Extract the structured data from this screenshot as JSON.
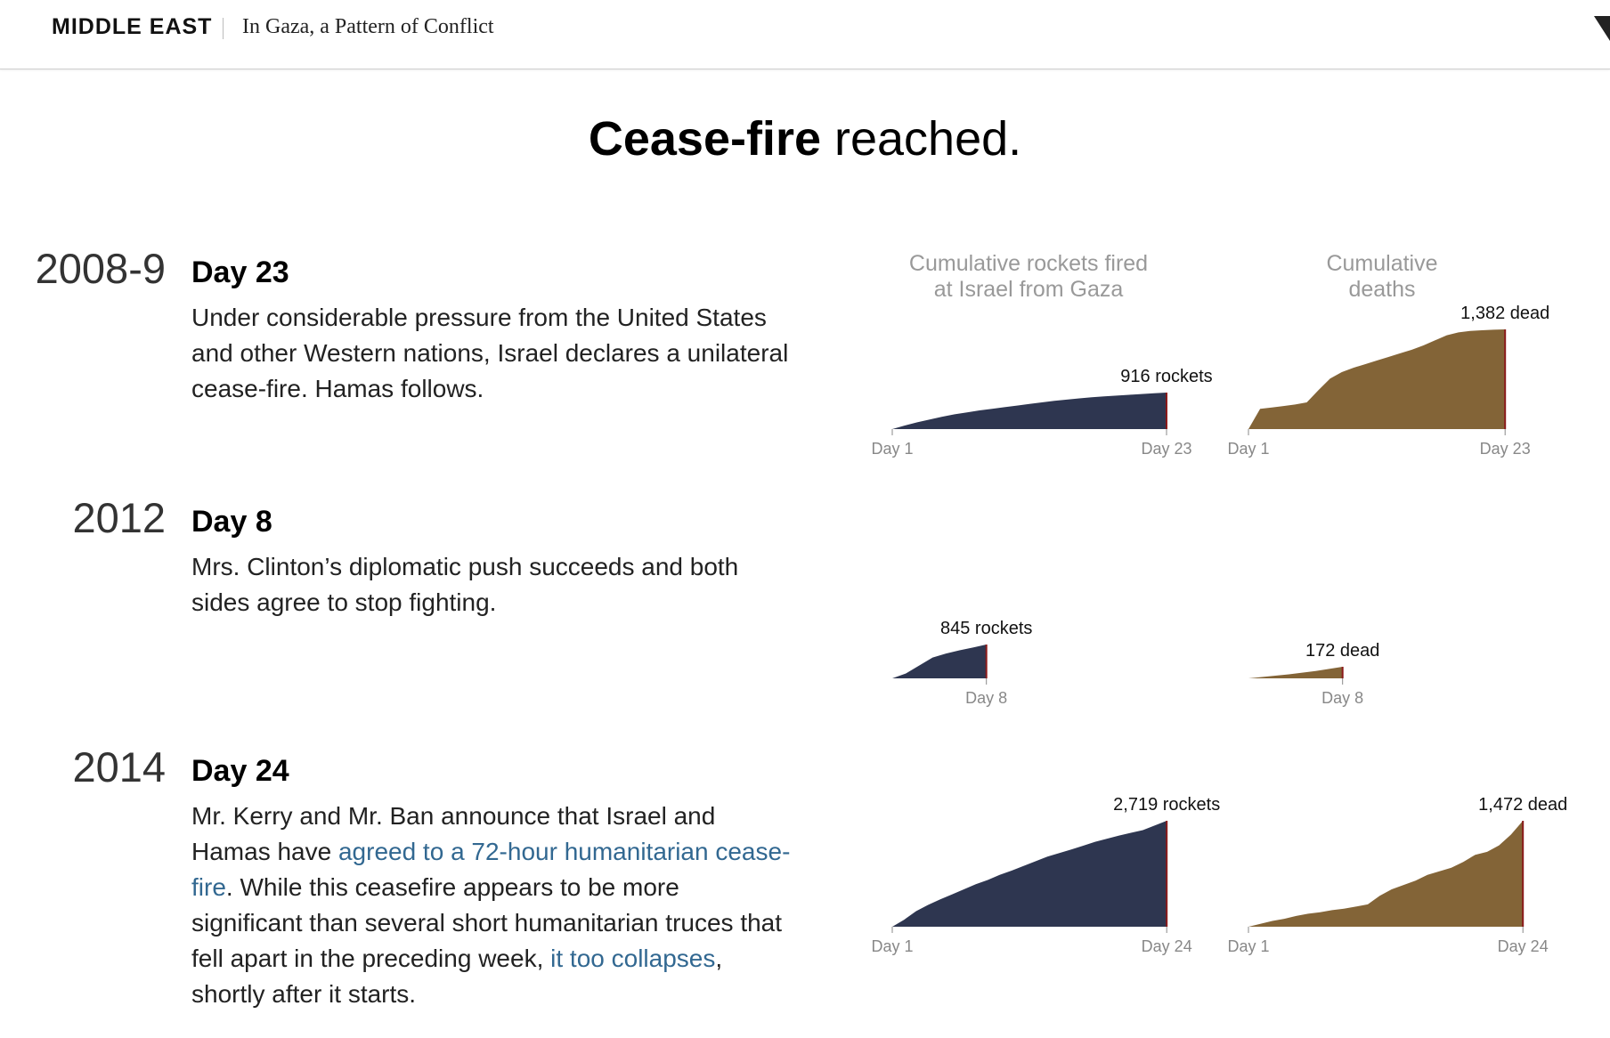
{
  "header": {
    "section": "MIDDLE EAST",
    "article_title": "In Gaza, a Pattern of Conflict"
  },
  "headline": {
    "bold": "Cease-fire",
    "rest": " reached."
  },
  "column_headers": {
    "rockets": [
      "Cumulative rockets fired",
      "at Israel from Gaza"
    ],
    "deaths": [
      "Cumulative",
      "deaths"
    ]
  },
  "colors": {
    "rockets": "#2e3650",
    "deaths": "#836437",
    "endline": "#8b1a1a",
    "link": "#326891"
  },
  "rows": [
    {
      "year": "2008-9",
      "day": "Day 23",
      "description": [
        {
          "text": "Under considerable pressure from the United States and other Western nations, Israel declares a unilateral cease-fire. Hamas follows."
        }
      ]
    },
    {
      "year": "2012",
      "day": "Day 8",
      "description": [
        {
          "text": "Mrs. Clinton’s diplomatic push succeeds and both sides agree to stop fighting."
        }
      ]
    },
    {
      "year": "2014",
      "day": "Day 24",
      "description": [
        {
          "text": "Mr. Kerry and Mr. Ban announce that Israel and Hamas have "
        },
        {
          "text": "agreed to a 72-hour humanitarian cease-fire",
          "link": true
        },
        {
          "text": ". While this ceasefire appears to be more significant than several short humanitarian truces that fell apart in the preceding week, "
        },
        {
          "text": "it too collapses",
          "link": true
        },
        {
          "text": ", shortly after it starts."
        }
      ]
    }
  ],
  "chart_data": [
    {
      "type": "area",
      "conflict": "2008-9",
      "metric": "Cumulative rockets fired at Israel from Gaza",
      "x": [
        1,
        2,
        3,
        4,
        5,
        6,
        7,
        8,
        9,
        10,
        11,
        12,
        13,
        14,
        15,
        16,
        17,
        18,
        19,
        20,
        21,
        22,
        23
      ],
      "values": [
        0,
        90,
        170,
        240,
        310,
        370,
        420,
        470,
        510,
        550,
        590,
        630,
        670,
        710,
        740,
        770,
        800,
        820,
        840,
        860,
        880,
        900,
        916
      ],
      "end_label": "916 rockets",
      "start_tick": "Day 1",
      "end_tick": "Day 23"
    },
    {
      "type": "area",
      "conflict": "2008-9",
      "metric": "Cumulative deaths",
      "x": [
        1,
        2,
        3,
        4,
        5,
        6,
        7,
        8,
        9,
        10,
        11,
        12,
        13,
        14,
        15,
        16,
        17,
        18,
        19,
        20,
        21,
        22,
        23
      ],
      "values": [
        0,
        280,
        300,
        320,
        340,
        370,
        540,
        700,
        790,
        850,
        900,
        950,
        1000,
        1050,
        1100,
        1160,
        1230,
        1300,
        1340,
        1360,
        1370,
        1377,
        1382
      ],
      "end_label": "1,382 dead",
      "start_tick": "Day 1",
      "end_tick": "Day 23"
    },
    {
      "type": "area",
      "conflict": "2012",
      "metric": "Cumulative rockets fired at Israel from Gaza",
      "x": [
        1,
        2,
        3,
        4,
        5,
        6,
        7,
        8
      ],
      "values": [
        0,
        120,
        320,
        520,
        620,
        700,
        770,
        845
      ],
      "end_label": "845 rockets",
      "start_tick": "",
      "end_tick": "Day 8"
    },
    {
      "type": "area",
      "conflict": "2012",
      "metric": "Cumulative deaths",
      "x": [
        1,
        2,
        3,
        4,
        5,
        6,
        7,
        8
      ],
      "values": [
        0,
        20,
        40,
        60,
        85,
        110,
        140,
        172
      ],
      "end_label": "172 dead",
      "start_tick": "",
      "end_tick": "Day 8"
    },
    {
      "type": "area",
      "conflict": "2014",
      "metric": "Cumulative rockets fired at Israel from Gaza",
      "x": [
        1,
        2,
        3,
        4,
        5,
        6,
        7,
        8,
        9,
        10,
        11,
        12,
        13,
        14,
        15,
        16,
        17,
        18,
        19,
        20,
        21,
        22,
        23,
        24
      ],
      "values": [
        0,
        180,
        400,
        560,
        700,
        830,
        960,
        1090,
        1200,
        1330,
        1440,
        1560,
        1680,
        1800,
        1890,
        1980,
        2080,
        2180,
        2260,
        2340,
        2410,
        2480,
        2600,
        2719
      ],
      "end_label": "2,719 rockets",
      "start_tick": "Day 1",
      "end_tick": "Day 24"
    },
    {
      "type": "area",
      "conflict": "2014",
      "metric": "Cumulative deaths",
      "x": [
        1,
        2,
        3,
        4,
        5,
        6,
        7,
        8,
        9,
        10,
        11,
        12,
        13,
        14,
        15,
        16,
        17,
        18,
        19,
        20,
        21,
        22,
        23,
        24
      ],
      "values": [
        0,
        40,
        80,
        110,
        150,
        180,
        200,
        230,
        250,
        280,
        310,
        430,
        520,
        580,
        640,
        720,
        770,
        820,
        900,
        1000,
        1040,
        1130,
        1280,
        1472
      ],
      "end_label": "1,472 dead",
      "start_tick": "Day 1",
      "end_tick": "Day 24"
    }
  ]
}
